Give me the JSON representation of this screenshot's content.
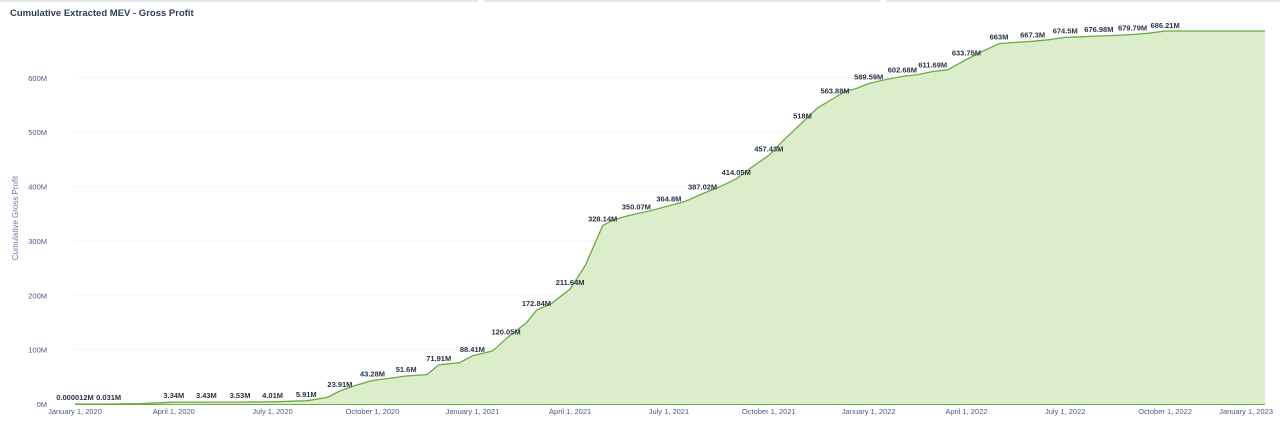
{
  "title": "Cumulative Extracted MEV - Gross Profit",
  "chart_data": {
    "type": "area",
    "title": "Cumulative Extracted MEV - Gross Profit",
    "ylabel": "Cumulative Gross Profit",
    "xlabel": "",
    "ylim": [
      0,
      686.21
    ],
    "xlim": [
      "2020-01-01",
      "2023-01-01"
    ],
    "y_ticks": [
      "0M",
      "100M",
      "200M",
      "300M",
      "400M",
      "500M",
      "600M"
    ],
    "y_tick_values": [
      0,
      100,
      200,
      300,
      400,
      500,
      600
    ],
    "x_ticks": [
      "January 1, 2020",
      "April 1, 2020",
      "July 1, 2020",
      "October 1, 2020",
      "January 1, 2021",
      "April 1, 2021",
      "July 1, 2021",
      "October 1, 2021",
      "January 1, 2022",
      "April 1, 2022",
      "July 1, 2022",
      "October 1, 2022",
      "January 1, 2023"
    ],
    "x_tick_dates": [
      "2020-01-01",
      "2020-04-01",
      "2020-07-01",
      "2020-10-01",
      "2021-01-01",
      "2021-04-01",
      "2021-07-01",
      "2021-10-01",
      "2022-01-01",
      "2022-04-01",
      "2022-07-01",
      "2022-10-01",
      "2023-01-01"
    ],
    "grid": true,
    "colors": {
      "line": "#6aaa47",
      "fill": "#dcedcc",
      "grid": "#e9ecf1"
    },
    "series": [
      {
        "x": [
          "2020-01-01",
          "2020-02-01",
          "2020-03-01",
          "2020-04-01",
          "2020-05-01",
          "2020-06-01",
          "2020-07-01",
          "2020-08-01",
          "2020-08-20",
          "2020-09-01",
          "2020-09-15",
          "2020-10-01",
          "2020-10-15",
          "2020-11-01",
          "2020-11-20",
          "2020-12-01",
          "2020-12-20",
          "2021-01-01",
          "2021-01-20",
          "2021-02-01",
          "2021-02-20",
          "2021-03-01",
          "2021-03-15",
          "2021-04-01",
          "2021-04-15",
          "2021-05-01",
          "2021-05-10",
          "2021-05-20",
          "2021-06-01",
          "2021-06-15",
          "2021-07-01",
          "2021-07-15",
          "2021-08-01",
          "2021-08-15",
          "2021-09-01",
          "2021-09-15",
          "2021-10-01",
          "2021-10-15",
          "2021-11-01",
          "2021-11-15",
          "2021-12-01",
          "2021-12-10",
          "2021-12-20",
          "2022-01-01",
          "2022-01-15",
          "2022-02-01",
          "2022-02-15",
          "2022-03-01",
          "2022-03-15",
          "2022-04-01",
          "2022-04-15",
          "2022-05-01",
          "2022-05-15",
          "2022-06-01",
          "2022-06-15",
          "2022-07-01",
          "2022-07-15",
          "2022-08-01",
          "2022-08-15",
          "2022-09-01",
          "2022-09-15",
          "2022-10-01",
          "2022-10-15",
          "2022-11-01",
          "2022-11-15",
          "2022-12-01",
          "2022-12-15",
          "2023-01-01"
        ],
        "y": [
          1.2e-05,
          0.031,
          0.5,
          3.34,
          3.43,
          3.53,
          4.01,
          5.91,
          12,
          23.91,
          34,
          43.28,
          47,
          51.6,
          54,
          71.91,
          76,
          88.41,
          98,
          120.05,
          150,
          172.84,
          185,
          211.64,
          255,
          328.14,
          338,
          344,
          350.07,
          356,
          364.8,
          372,
          387.02,
          398,
          414.05,
          435,
          457.43,
          486,
          518,
          545,
          563.88,
          575,
          580,
          589.59,
          596,
          602.68,
          606,
          611.69,
          615,
          633.75,
          648,
          663,
          665,
          667.3,
          670,
          674.5,
          675.5,
          676.98,
          678,
          679.79,
          682,
          686.21,
          686.21,
          686.21,
          686.21,
          686.21,
          686.21,
          686.21
        ]
      }
    ],
    "data_labels": [
      {
        "x": "2020-01-01",
        "y": 1.2e-05,
        "text": "0.000012M"
      },
      {
        "x": "2020-02-01",
        "y": 0.031,
        "text": "0.031M"
      },
      {
        "x": "2020-04-01",
        "y": 3.34,
        "text": "3.34M"
      },
      {
        "x": "2020-05-01",
        "y": 3.43,
        "text": "3.43M"
      },
      {
        "x": "2020-06-01",
        "y": 3.53,
        "text": "3.53M"
      },
      {
        "x": "2020-07-01",
        "y": 4.01,
        "text": "4.01M"
      },
      {
        "x": "2020-08-01",
        "y": 5.91,
        "text": "5.91M"
      },
      {
        "x": "2020-09-01",
        "y": 23.91,
        "text": "23.91M"
      },
      {
        "x": "2020-10-01",
        "y": 43.28,
        "text": "43.28M"
      },
      {
        "x": "2020-11-01",
        "y": 51.6,
        "text": "51.6M"
      },
      {
        "x": "2020-12-01",
        "y": 71.91,
        "text": "71.91M"
      },
      {
        "x": "2021-01-01",
        "y": 88.41,
        "text": "88.41M"
      },
      {
        "x": "2021-02-01",
        "y": 120.05,
        "text": "120.05M"
      },
      {
        "x": "2021-03-01",
        "y": 172.84,
        "text": "172.84M"
      },
      {
        "x": "2021-04-01",
        "y": 211.64,
        "text": "211.64M"
      },
      {
        "x": "2021-05-01",
        "y": 328.14,
        "text": "328.14M"
      },
      {
        "x": "2021-06-01",
        "y": 350.07,
        "text": "350.07M"
      },
      {
        "x": "2021-07-01",
        "y": 364.8,
        "text": "364.8M"
      },
      {
        "x": "2021-08-01",
        "y": 387.02,
        "text": "387.02M"
      },
      {
        "x": "2021-09-01",
        "y": 414.05,
        "text": "414.05M"
      },
      {
        "x": "2021-10-01",
        "y": 457.43,
        "text": "457.43M"
      },
      {
        "x": "2021-11-01",
        "y": 518,
        "text": "518M"
      },
      {
        "x": "2021-12-01",
        "y": 563.88,
        "text": "563.88M"
      },
      {
        "x": "2022-01-01",
        "y": 589.59,
        "text": "589.59M"
      },
      {
        "x": "2022-02-01",
        "y": 602.68,
        "text": "602.68M"
      },
      {
        "x": "2022-03-01",
        "y": 611.69,
        "text": "611.69M"
      },
      {
        "x": "2022-04-01",
        "y": 633.75,
        "text": "633.75M"
      },
      {
        "x": "2022-05-01",
        "y": 663,
        "text": "663M"
      },
      {
        "x": "2022-06-01",
        "y": 667.3,
        "text": "667.3M"
      },
      {
        "x": "2022-07-01",
        "y": 674.5,
        "text": "674.5M"
      },
      {
        "x": "2022-08-01",
        "y": 676.98,
        "text": "676.98M"
      },
      {
        "x": "2022-09-01",
        "y": 679.79,
        "text": "679.79M"
      },
      {
        "x": "2022-10-01",
        "y": 686.21,
        "text": "686.21M"
      }
    ]
  }
}
